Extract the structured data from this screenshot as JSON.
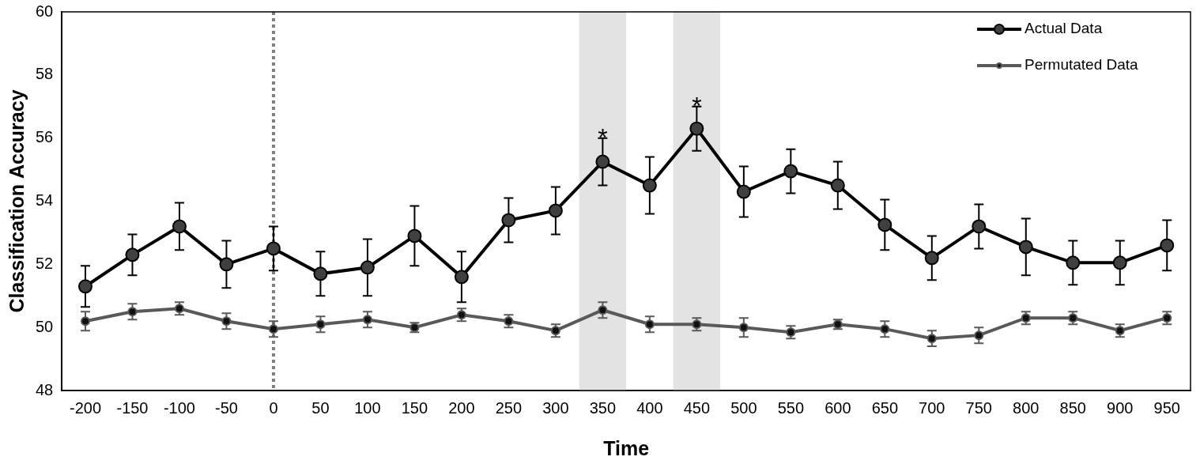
{
  "chart_data": {
    "type": "line",
    "x_label": "Time",
    "y_label": "Classification Accuracy",
    "categories": [
      -200,
      -150,
      -100,
      -50,
      0,
      50,
      100,
      150,
      200,
      250,
      300,
      350,
      400,
      450,
      500,
      550,
      600,
      650,
      700,
      750,
      800,
      850,
      900,
      950
    ],
    "series": [
      {
        "name": "Actual Data",
        "color": "#000000",
        "marker": "circle",
        "line_style": "solid",
        "values": [
          51.3,
          52.3,
          53.2,
          52.0,
          52.5,
          51.7,
          51.9,
          52.9,
          51.6,
          53.4,
          53.7,
          55.25,
          54.5,
          56.3,
          54.3,
          54.95,
          54.5,
          53.25,
          52.2,
          53.2,
          52.55,
          52.05,
          52.05,
          52.6
        ],
        "errors": [
          0.65,
          0.65,
          0.75,
          0.75,
          0.7,
          0.7,
          0.9,
          0.95,
          0.8,
          0.7,
          0.75,
          0.75,
          0.9,
          0.7,
          0.8,
          0.7,
          0.75,
          0.8,
          0.7,
          0.7,
          0.9,
          0.7,
          0.7,
          0.8
        ]
      },
      {
        "name": "Permutated Data",
        "color": "#595959",
        "marker": "circle",
        "line_style": "solid",
        "values": [
          50.2,
          50.5,
          50.6,
          50.2,
          49.95,
          50.1,
          50.25,
          50.0,
          50.4,
          50.2,
          49.9,
          50.55,
          50.1,
          50.1,
          50.0,
          49.85,
          50.1,
          49.95,
          49.65,
          49.75,
          50.3,
          50.3,
          49.9,
          50.3
        ],
        "errors": [
          0.3,
          0.25,
          0.2,
          0.25,
          0.25,
          0.25,
          0.25,
          0.15,
          0.2,
          0.2,
          0.2,
          0.25,
          0.25,
          0.2,
          0.3,
          0.2,
          0.15,
          0.25,
          0.25,
          0.25,
          0.2,
          0.2,
          0.2,
          0.2
        ]
      }
    ],
    "ylim": [
      48,
      60
    ],
    "yticks": [
      48,
      50,
      52,
      54,
      56,
      58,
      60
    ],
    "grid": false,
    "legend": "upper right",
    "annotations": [
      {
        "x": 350,
        "text": "*"
      },
      {
        "x": 450,
        "text": "*"
      }
    ],
    "shaded_regions": [
      350,
      450
    ],
    "reference_line": {
      "x": 0,
      "line_style": "dashed"
    }
  }
}
